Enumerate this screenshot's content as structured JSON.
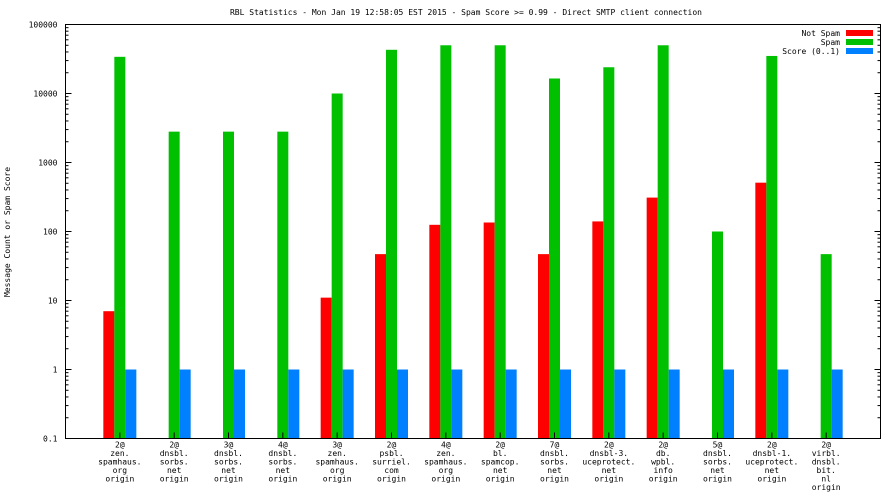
{
  "chart_data": {
    "type": "bar",
    "title": "RBL Statistics - Mon Jan 19 12:58:05 EST 2015 - Spam Score >= 0.99 - Direct SMTP client connection",
    "xlabel": "",
    "ylabel": "Message Count or Spam Score",
    "yscale": "log",
    "ylim": [
      0.1,
      100000
    ],
    "yticks": [
      "0.1",
      "1",
      "10",
      "100",
      "1000",
      "10000",
      "100000"
    ],
    "grid": false,
    "legend_position": "top-right",
    "categories": [
      [
        "2@",
        "zen.",
        "spamhaus.",
        "org",
        "origin"
      ],
      [
        "2@",
        "dnsbl.",
        "sorbs.",
        "net",
        "origin"
      ],
      [
        "3@",
        "dnsbl.",
        "sorbs.",
        "net",
        "origin"
      ],
      [
        "4@",
        "dnsbl.",
        "sorbs.",
        "net",
        "origin"
      ],
      [
        "3@",
        "zen.",
        "spamhaus.",
        "org",
        "origin"
      ],
      [
        "2@",
        "psbl.",
        "surriel.",
        "com",
        "origin"
      ],
      [
        "4@",
        "zen.",
        "spamhaus.",
        "org",
        "origin"
      ],
      [
        "2@",
        "bl.",
        "spamcop.",
        "net",
        "origin"
      ],
      [
        "7@",
        "dnsbl.",
        "sorbs.",
        "net",
        "origin"
      ],
      [
        "2@",
        "dnsbl-3.",
        "uceprotect.",
        "net",
        "origin"
      ],
      [
        "2@",
        "db.",
        "wpbl.",
        "info",
        "origin"
      ],
      [
        "5@",
        "dnsbl.",
        "sorbs.",
        "net",
        "origin"
      ],
      [
        "2@",
        "dnsbl-1.",
        "uceprotect.",
        "net",
        "origin"
      ],
      [
        "2@",
        "virbl.",
        "dnsbl.",
        "bit.",
        "nl",
        "origin"
      ]
    ],
    "series": [
      {
        "name": "Not Spam",
        "color": "#ff0000",
        "values": [
          7,
          null,
          null,
          null,
          11,
          47,
          125,
          135,
          47,
          140,
          310,
          null,
          510,
          null
        ]
      },
      {
        "name": "Spam",
        "color": "#00c000",
        "values": [
          34000,
          2800,
          2800,
          2800,
          10000,
          43000,
          50000,
          50000,
          16500,
          24000,
          50000,
          100,
          35000,
          47
        ]
      },
      {
        "name": "Score (0..1)",
        "color": "#0080ff",
        "values": [
          1,
          1,
          1,
          1,
          1,
          1,
          1,
          1,
          1,
          1,
          1,
          1,
          1,
          1
        ]
      }
    ]
  }
}
